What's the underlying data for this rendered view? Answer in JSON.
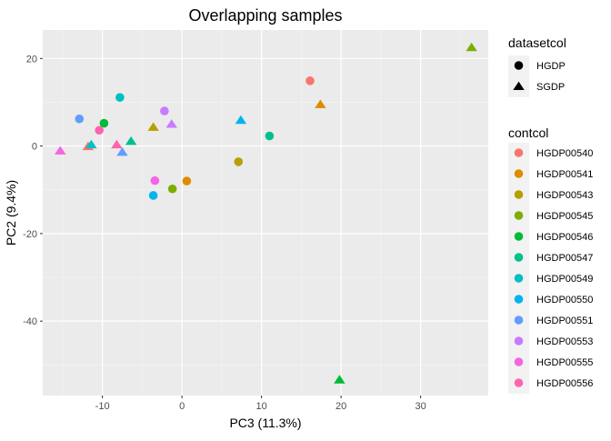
{
  "chart_data": {
    "type": "scatter",
    "title": "Overlapping samples",
    "xlabel": "PC3 (11.3%)",
    "ylabel": "PC2 (9.4%)",
    "xlim": [
      -17.5,
      38.5
    ],
    "ylim": [
      -57,
      26.5
    ],
    "xticks": [
      -10,
      0,
      10,
      20,
      30
    ],
    "yticks": [
      20,
      0,
      -20,
      -40
    ],
    "grid": true,
    "legend_position": "right",
    "shape_legend": {
      "title": "datasetcol",
      "items": [
        {
          "label": "HGDP",
          "shape": "circle"
        },
        {
          "label": "SGDP",
          "shape": "triangle"
        }
      ]
    },
    "color_legend": {
      "title": "contcol",
      "items": [
        {
          "label": "HGDP00540",
          "color": "#F8766D"
        },
        {
          "label": "HGDP00541",
          "color": "#DE8C00"
        },
        {
          "label": "HGDP00543",
          "color": "#B79F00"
        },
        {
          "label": "HGDP00545",
          "color": "#7CAE00"
        },
        {
          "label": "HGDP00546",
          "color": "#00BA38"
        },
        {
          "label": "HGDP00547",
          "color": "#00C08B"
        },
        {
          "label": "HGDP00549",
          "color": "#00BFC4"
        },
        {
          "label": "HGDP00550",
          "color": "#00B4F0"
        },
        {
          "label": "HGDP00551",
          "color": "#619CFF"
        },
        {
          "label": "HGDP00553",
          "color": "#C77CFF"
        },
        {
          "label": "HGDP00555",
          "color": "#F564E3"
        },
        {
          "label": "HGDP00556",
          "color": "#FF64B0"
        }
      ]
    },
    "points": [
      {
        "x": 16.1,
        "y": 14.9,
        "shape": "circle",
        "group": "HGDP00540"
      },
      {
        "x": -11.8,
        "y": -0.1,
        "shape": "triangle",
        "group": "HGDP00540"
      },
      {
        "x": 0.6,
        "y": -8.0,
        "shape": "circle",
        "group": "HGDP00541"
      },
      {
        "x": 17.4,
        "y": 9.5,
        "shape": "triangle",
        "group": "HGDP00541"
      },
      {
        "x": 7.1,
        "y": -3.6,
        "shape": "circle",
        "group": "HGDP00543"
      },
      {
        "x": -3.6,
        "y": 4.3,
        "shape": "triangle",
        "group": "HGDP00543"
      },
      {
        "x": -1.2,
        "y": -9.8,
        "shape": "circle",
        "group": "HGDP00545"
      },
      {
        "x": 36.4,
        "y": 22.5,
        "shape": "triangle",
        "group": "HGDP00545"
      },
      {
        "x": -9.8,
        "y": 5.2,
        "shape": "circle",
        "group": "HGDP00546"
      },
      {
        "x": 19.8,
        "y": -53.4,
        "shape": "triangle",
        "group": "HGDP00546"
      },
      {
        "x": 11.0,
        "y": 2.3,
        "shape": "circle",
        "group": "HGDP00547"
      },
      {
        "x": -6.4,
        "y": 1.1,
        "shape": "triangle",
        "group": "HGDP00547"
      },
      {
        "x": -7.8,
        "y": 11.1,
        "shape": "circle",
        "group": "HGDP00549"
      },
      {
        "x": -11.4,
        "y": 0.3,
        "shape": "triangle",
        "group": "HGDP00549"
      },
      {
        "x": -3.6,
        "y": -11.3,
        "shape": "circle",
        "group": "HGDP00550"
      },
      {
        "x": 7.4,
        "y": 5.9,
        "shape": "triangle",
        "group": "HGDP00550"
      },
      {
        "x": -12.9,
        "y": 6.2,
        "shape": "circle",
        "group": "HGDP00551"
      },
      {
        "x": -7.5,
        "y": -1.4,
        "shape": "triangle",
        "group": "HGDP00551"
      },
      {
        "x": -2.2,
        "y": 8.0,
        "shape": "circle",
        "group": "HGDP00553"
      },
      {
        "x": -1.3,
        "y": 5.0,
        "shape": "triangle",
        "group": "HGDP00553"
      },
      {
        "x": -3.4,
        "y": -7.9,
        "shape": "circle",
        "group": "HGDP00555"
      },
      {
        "x": -15.3,
        "y": -1.1,
        "shape": "triangle",
        "group": "HGDP00555"
      },
      {
        "x": -10.4,
        "y": 3.6,
        "shape": "circle",
        "group": "HGDP00556"
      },
      {
        "x": -8.2,
        "y": 0.3,
        "shape": "triangle",
        "group": "HGDP00556"
      }
    ]
  }
}
